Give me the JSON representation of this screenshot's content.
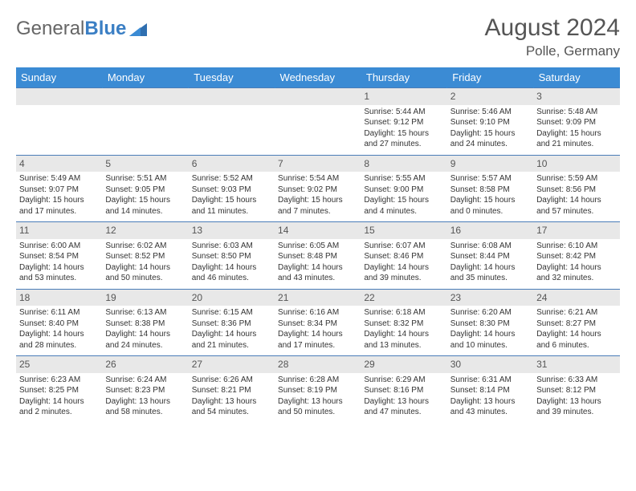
{
  "brand": {
    "part1": "General",
    "part2": "Blue"
  },
  "title": {
    "month": "August 2024",
    "location": "Polle, Germany"
  },
  "colors": {
    "header_bg": "#3b8bd4",
    "header_text": "#ffffff",
    "num_bg": "#e8e8e8",
    "divider": "#4a7db8",
    "text": "#333333",
    "muted": "#555555"
  },
  "dayNames": [
    "Sunday",
    "Monday",
    "Tuesday",
    "Wednesday",
    "Thursday",
    "Friday",
    "Saturday"
  ],
  "weeks": [
    [
      {
        "n": "",
        "sr": "",
        "ss": "",
        "dl": ""
      },
      {
        "n": "",
        "sr": "",
        "ss": "",
        "dl": ""
      },
      {
        "n": "",
        "sr": "",
        "ss": "",
        "dl": ""
      },
      {
        "n": "",
        "sr": "",
        "ss": "",
        "dl": ""
      },
      {
        "n": "1",
        "sr": "Sunrise: 5:44 AM",
        "ss": "Sunset: 9:12 PM",
        "dl": "Daylight: 15 hours and 27 minutes."
      },
      {
        "n": "2",
        "sr": "Sunrise: 5:46 AM",
        "ss": "Sunset: 9:10 PM",
        "dl": "Daylight: 15 hours and 24 minutes."
      },
      {
        "n": "3",
        "sr": "Sunrise: 5:48 AM",
        "ss": "Sunset: 9:09 PM",
        "dl": "Daylight: 15 hours and 21 minutes."
      }
    ],
    [
      {
        "n": "4",
        "sr": "Sunrise: 5:49 AM",
        "ss": "Sunset: 9:07 PM",
        "dl": "Daylight: 15 hours and 17 minutes."
      },
      {
        "n": "5",
        "sr": "Sunrise: 5:51 AM",
        "ss": "Sunset: 9:05 PM",
        "dl": "Daylight: 15 hours and 14 minutes."
      },
      {
        "n": "6",
        "sr": "Sunrise: 5:52 AM",
        "ss": "Sunset: 9:03 PM",
        "dl": "Daylight: 15 hours and 11 minutes."
      },
      {
        "n": "7",
        "sr": "Sunrise: 5:54 AM",
        "ss": "Sunset: 9:02 PM",
        "dl": "Daylight: 15 hours and 7 minutes."
      },
      {
        "n": "8",
        "sr": "Sunrise: 5:55 AM",
        "ss": "Sunset: 9:00 PM",
        "dl": "Daylight: 15 hours and 4 minutes."
      },
      {
        "n": "9",
        "sr": "Sunrise: 5:57 AM",
        "ss": "Sunset: 8:58 PM",
        "dl": "Daylight: 15 hours and 0 minutes."
      },
      {
        "n": "10",
        "sr": "Sunrise: 5:59 AM",
        "ss": "Sunset: 8:56 PM",
        "dl": "Daylight: 14 hours and 57 minutes."
      }
    ],
    [
      {
        "n": "11",
        "sr": "Sunrise: 6:00 AM",
        "ss": "Sunset: 8:54 PM",
        "dl": "Daylight: 14 hours and 53 minutes."
      },
      {
        "n": "12",
        "sr": "Sunrise: 6:02 AM",
        "ss": "Sunset: 8:52 PM",
        "dl": "Daylight: 14 hours and 50 minutes."
      },
      {
        "n": "13",
        "sr": "Sunrise: 6:03 AM",
        "ss": "Sunset: 8:50 PM",
        "dl": "Daylight: 14 hours and 46 minutes."
      },
      {
        "n": "14",
        "sr": "Sunrise: 6:05 AM",
        "ss": "Sunset: 8:48 PM",
        "dl": "Daylight: 14 hours and 43 minutes."
      },
      {
        "n": "15",
        "sr": "Sunrise: 6:07 AM",
        "ss": "Sunset: 8:46 PM",
        "dl": "Daylight: 14 hours and 39 minutes."
      },
      {
        "n": "16",
        "sr": "Sunrise: 6:08 AM",
        "ss": "Sunset: 8:44 PM",
        "dl": "Daylight: 14 hours and 35 minutes."
      },
      {
        "n": "17",
        "sr": "Sunrise: 6:10 AM",
        "ss": "Sunset: 8:42 PM",
        "dl": "Daylight: 14 hours and 32 minutes."
      }
    ],
    [
      {
        "n": "18",
        "sr": "Sunrise: 6:11 AM",
        "ss": "Sunset: 8:40 PM",
        "dl": "Daylight: 14 hours and 28 minutes."
      },
      {
        "n": "19",
        "sr": "Sunrise: 6:13 AM",
        "ss": "Sunset: 8:38 PM",
        "dl": "Daylight: 14 hours and 24 minutes."
      },
      {
        "n": "20",
        "sr": "Sunrise: 6:15 AM",
        "ss": "Sunset: 8:36 PM",
        "dl": "Daylight: 14 hours and 21 minutes."
      },
      {
        "n": "21",
        "sr": "Sunrise: 6:16 AM",
        "ss": "Sunset: 8:34 PM",
        "dl": "Daylight: 14 hours and 17 minutes."
      },
      {
        "n": "22",
        "sr": "Sunrise: 6:18 AM",
        "ss": "Sunset: 8:32 PM",
        "dl": "Daylight: 14 hours and 13 minutes."
      },
      {
        "n": "23",
        "sr": "Sunrise: 6:20 AM",
        "ss": "Sunset: 8:30 PM",
        "dl": "Daylight: 14 hours and 10 minutes."
      },
      {
        "n": "24",
        "sr": "Sunrise: 6:21 AM",
        "ss": "Sunset: 8:27 PM",
        "dl": "Daylight: 14 hours and 6 minutes."
      }
    ],
    [
      {
        "n": "25",
        "sr": "Sunrise: 6:23 AM",
        "ss": "Sunset: 8:25 PM",
        "dl": "Daylight: 14 hours and 2 minutes."
      },
      {
        "n": "26",
        "sr": "Sunrise: 6:24 AM",
        "ss": "Sunset: 8:23 PM",
        "dl": "Daylight: 13 hours and 58 minutes."
      },
      {
        "n": "27",
        "sr": "Sunrise: 6:26 AM",
        "ss": "Sunset: 8:21 PM",
        "dl": "Daylight: 13 hours and 54 minutes."
      },
      {
        "n": "28",
        "sr": "Sunrise: 6:28 AM",
        "ss": "Sunset: 8:19 PM",
        "dl": "Daylight: 13 hours and 50 minutes."
      },
      {
        "n": "29",
        "sr": "Sunrise: 6:29 AM",
        "ss": "Sunset: 8:16 PM",
        "dl": "Daylight: 13 hours and 47 minutes."
      },
      {
        "n": "30",
        "sr": "Sunrise: 6:31 AM",
        "ss": "Sunset: 8:14 PM",
        "dl": "Daylight: 13 hours and 43 minutes."
      },
      {
        "n": "31",
        "sr": "Sunrise: 6:33 AM",
        "ss": "Sunset: 8:12 PM",
        "dl": "Daylight: 13 hours and 39 minutes."
      }
    ]
  ]
}
